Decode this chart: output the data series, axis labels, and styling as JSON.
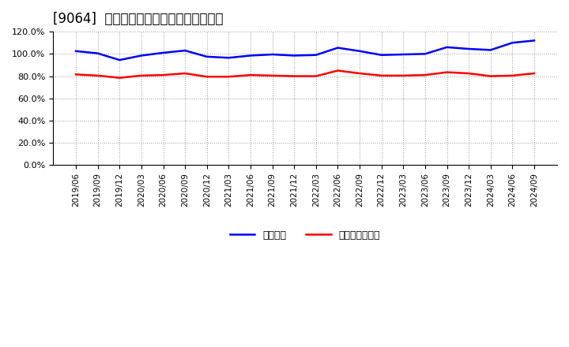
{
  "title": "[9064]  固定比率、固定長期適合率の推移",
  "x_labels": [
    "2019/06",
    "2019/09",
    "2019/12",
    "2020/03",
    "2020/06",
    "2020/09",
    "2020/12",
    "2021/03",
    "2021/06",
    "2021/09",
    "2021/12",
    "2022/03",
    "2022/06",
    "2022/09",
    "2022/12",
    "2023/03",
    "2023/06",
    "2023/09",
    "2023/12",
    "2024/03",
    "2024/06",
    "2024/09"
  ],
  "fixed_ratio": [
    102.5,
    100.5,
    94.5,
    98.5,
    101.0,
    103.0,
    97.5,
    96.5,
    98.5,
    99.5,
    98.5,
    99.0,
    105.5,
    102.5,
    99.0,
    99.5,
    100.0,
    106.0,
    104.5,
    103.5,
    110.0,
    112.0
  ],
  "fixed_long_ratio": [
    81.5,
    80.5,
    78.5,
    80.5,
    81.0,
    82.5,
    79.5,
    79.5,
    81.0,
    80.5,
    80.0,
    80.0,
    85.0,
    82.5,
    80.5,
    80.5,
    81.0,
    83.5,
    82.5,
    80.0,
    80.5,
    82.5
  ],
  "line1_color": "#0000FF",
  "line2_color": "#FF0000",
  "legend1": "固定比率",
  "legend2": "固定長期適合率",
  "ylim": [
    0,
    120
  ],
  "yticks": [
    0,
    20,
    40,
    60,
    80,
    100,
    120
  ],
  "background_color": "#FFFFFF",
  "grid_color": "#AAAAAA",
  "title_fontsize": 12
}
